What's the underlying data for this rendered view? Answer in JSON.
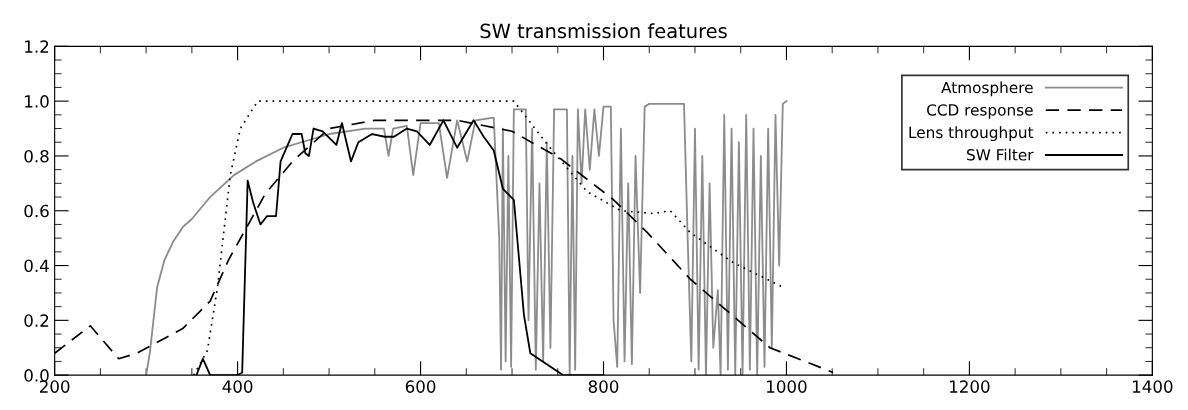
{
  "chart_data": {
    "type": "line",
    "title": "SW transmission features",
    "xlim": [
      200,
      1400
    ],
    "xticks": [
      200,
      400,
      600,
      800,
      1000,
      1200,
      1400
    ],
    "ylim": [
      0,
      1.2
    ],
    "yticks": [
      {
        "value": 0,
        "label": "0.0"
      },
      {
        "value": 0.2,
        "label": "0.2"
      },
      {
        "value": 0.4,
        "label": "0.4"
      },
      {
        "value": 0.6,
        "label": "0.6"
      },
      {
        "value": 0.8,
        "label": "0.8"
      },
      {
        "value": 1.0,
        "label": "1.0"
      },
      {
        "value": 1.2,
        "label": "1.2"
      }
    ],
    "legend": "top right",
    "grid": false,
    "marker": "none",
    "series": [
      {
        "name": "Atmosphere",
        "color": "#8c8c8c",
        "line_style": "solid",
        "x": [
          300,
          304,
          307,
          312,
          320,
          330,
          340,
          350,
          370,
          396,
          420,
          450,
          480,
          500,
          540,
          560,
          565,
          570,
          585,
          592,
          600,
          620,
          629,
          640,
          651,
          660,
          680,
          686,
          688,
          690,
          693,
          696,
          699,
          702,
          705,
          715,
          718,
          722,
          726,
          730,
          734,
          738,
          742,
          746,
          755,
          760,
          763,
          766,
          769,
          772,
          776,
          780,
          785,
          790,
          795,
          800,
          808,
          811,
          815,
          819,
          823,
          827,
          831,
          835,
          840,
          845,
          850,
          860,
          870,
          880,
          888,
          892,
          896,
          900,
          904,
          908,
          912,
          916,
          920,
          925,
          928,
          932,
          936,
          940,
          944,
          948,
          952,
          956,
          960,
          964,
          968,
          972,
          976,
          980,
          984,
          988,
          992,
          996,
          1000
        ],
        "values": [
          0,
          0.08,
          0.17,
          0.32,
          0.42,
          0.49,
          0.54,
          0.57,
          0.65,
          0.73,
          0.78,
          0.83,
          0.86,
          0.88,
          0.9,
          0.9,
          0.8,
          0.9,
          0.91,
          0.73,
          0.92,
          0.92,
          0.72,
          0.93,
          0.78,
          0.93,
          0.94,
          0.5,
          0.02,
          0.9,
          0.05,
          0.8,
          0.03,
          0.97,
          0.97,
          0.97,
          0.2,
          0.9,
          0.02,
          0.7,
          0.05,
          0.85,
          0.1,
          0.97,
          0.97,
          0.97,
          0.0,
          0.8,
          0.02,
          0.97,
          0.7,
          0.97,
          0.75,
          0.97,
          0.8,
          0.98,
          0.98,
          0.2,
          0.03,
          0.9,
          0.05,
          0.7,
          0.04,
          0.8,
          0.3,
          0.98,
          0.99,
          0.99,
          0.99,
          0.99,
          0.99,
          0.5,
          0.05,
          0.9,
          0.02,
          0.8,
          0.0,
          0.7,
          0.1,
          0.31,
          0.0,
          0.95,
          0.02,
          0.9,
          0.0,
          0.85,
          0.0,
          0.95,
          0.02,
          0.9,
          0.0,
          0.8,
          0.03,
          0.9,
          0.1,
          0.95,
          0.4,
          0.99,
          1.0
        ]
      },
      {
        "name": "CCD response",
        "color": "#000000",
        "line_style": "dashed",
        "x": [
          200,
          239,
          270,
          290,
          340,
          370,
          390,
          410,
          430,
          460,
          500,
          550,
          600,
          640,
          700,
          753,
          811,
          848,
          895,
          982,
          1051
        ],
        "values": [
          0.08,
          0.18,
          0.06,
          0.08,
          0.17,
          0.27,
          0.42,
          0.54,
          0.66,
          0.78,
          0.9,
          0.93,
          0.93,
          0.93,
          0.89,
          0.79,
          0.64,
          0.52,
          0.35,
          0.1,
          0.01
        ]
      },
      {
        "name": "Lens throughput",
        "color": "#000000",
        "line_style": "dotted",
        "x": [
          352,
          367,
          378,
          392,
          403,
          422,
          702,
          739,
          782,
          819,
          855,
          873,
          895,
          942,
          997
        ],
        "values": [
          0,
          0.09,
          0.32,
          0.73,
          0.9,
          1.0,
          1.0,
          0.84,
          0.67,
          0.6,
          0.59,
          0.6,
          0.52,
          0.41,
          0.32
        ]
      },
      {
        "name": "SW Filter",
        "color": "#000000",
        "line_style": "solid",
        "x": [
          355,
          362,
          370,
          400,
          405,
          411,
          417,
          425,
          432,
          442,
          447,
          460,
          470,
          474,
          478,
          483,
          493,
          508,
          514,
          524,
          532,
          547,
          561,
          571,
          585,
          596,
          610,
          625,
          640,
          658,
          669,
          680,
          690,
          702,
          713,
          720,
          738,
          756,
          800
        ],
        "values": [
          0,
          0.06,
          0,
          0,
          0.01,
          0.71,
          0.63,
          0.55,
          0.58,
          0.58,
          0.78,
          0.88,
          0.88,
          0.81,
          0.8,
          0.9,
          0.89,
          0.84,
          0.92,
          0.78,
          0.85,
          0.88,
          0.87,
          0.87,
          0.9,
          0.89,
          0.84,
          0.93,
          0.83,
          0.93,
          0.87,
          0.82,
          0.68,
          0.64,
          0.22,
          0.08,
          0.04,
          0.0,
          0.0
        ]
      }
    ]
  }
}
